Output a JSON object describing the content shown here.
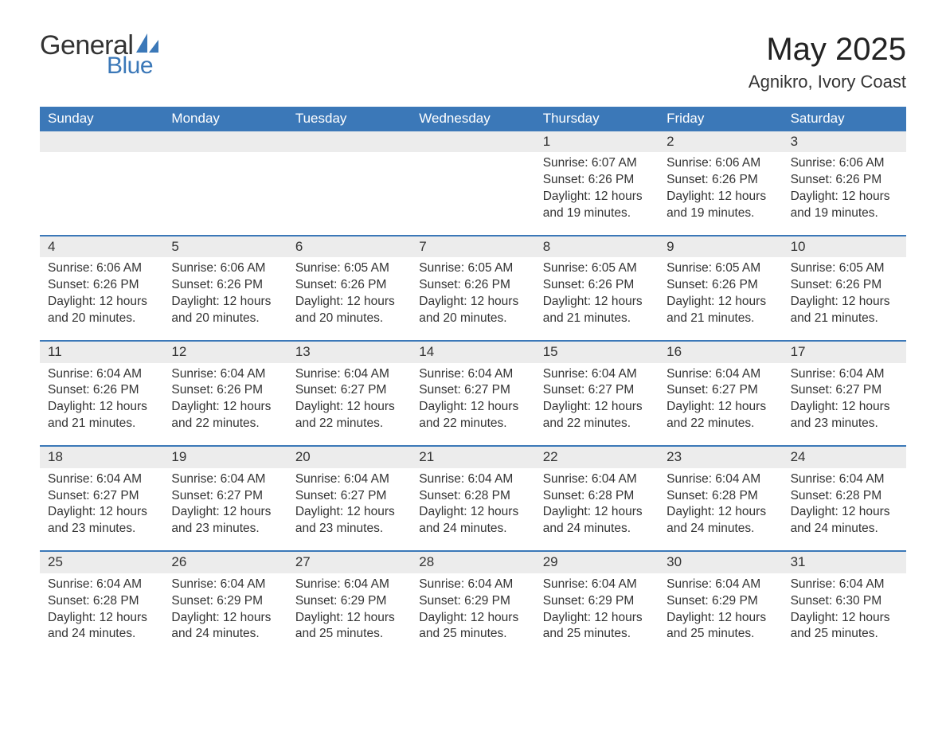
{
  "brand": {
    "word1": "General",
    "word2": "Blue",
    "sail_color": "#3b78b8",
    "text_color": "#333333",
    "blue_color": "#3b78b8"
  },
  "title": "May 2025",
  "location": "Agnikro, Ivory Coast",
  "colors": {
    "header_bg": "#3b78b8",
    "header_text": "#ffffff",
    "daynum_bg": "#ececec",
    "border": "#3b78b8",
    "body_text": "#333333",
    "page_bg": "#ffffff"
  },
  "typography": {
    "title_fontsize": 40,
    "location_fontsize": 22,
    "weekday_fontsize": 17,
    "daynum_fontsize": 17,
    "body_fontsize": 15.5,
    "font_family": "Segoe UI, Arial, Helvetica, sans-serif"
  },
  "weekdays": [
    "Sunday",
    "Monday",
    "Tuesday",
    "Wednesday",
    "Thursday",
    "Friday",
    "Saturday"
  ],
  "layout": {
    "columns": 7,
    "rows": 5,
    "first_day_column_index": 4,
    "days_in_month": 31
  },
  "weeks": [
    [
      null,
      null,
      null,
      null,
      {
        "n": "1",
        "sunrise": "Sunrise: 6:07 AM",
        "sunset": "Sunset: 6:26 PM",
        "dl1": "Daylight: 12 hours",
        "dl2": "and 19 minutes."
      },
      {
        "n": "2",
        "sunrise": "Sunrise: 6:06 AM",
        "sunset": "Sunset: 6:26 PM",
        "dl1": "Daylight: 12 hours",
        "dl2": "and 19 minutes."
      },
      {
        "n": "3",
        "sunrise": "Sunrise: 6:06 AM",
        "sunset": "Sunset: 6:26 PM",
        "dl1": "Daylight: 12 hours",
        "dl2": "and 19 minutes."
      }
    ],
    [
      {
        "n": "4",
        "sunrise": "Sunrise: 6:06 AM",
        "sunset": "Sunset: 6:26 PM",
        "dl1": "Daylight: 12 hours",
        "dl2": "and 20 minutes."
      },
      {
        "n": "5",
        "sunrise": "Sunrise: 6:06 AM",
        "sunset": "Sunset: 6:26 PM",
        "dl1": "Daylight: 12 hours",
        "dl2": "and 20 minutes."
      },
      {
        "n": "6",
        "sunrise": "Sunrise: 6:05 AM",
        "sunset": "Sunset: 6:26 PM",
        "dl1": "Daylight: 12 hours",
        "dl2": "and 20 minutes."
      },
      {
        "n": "7",
        "sunrise": "Sunrise: 6:05 AM",
        "sunset": "Sunset: 6:26 PM",
        "dl1": "Daylight: 12 hours",
        "dl2": "and 20 minutes."
      },
      {
        "n": "8",
        "sunrise": "Sunrise: 6:05 AM",
        "sunset": "Sunset: 6:26 PM",
        "dl1": "Daylight: 12 hours",
        "dl2": "and 21 minutes."
      },
      {
        "n": "9",
        "sunrise": "Sunrise: 6:05 AM",
        "sunset": "Sunset: 6:26 PM",
        "dl1": "Daylight: 12 hours",
        "dl2": "and 21 minutes."
      },
      {
        "n": "10",
        "sunrise": "Sunrise: 6:05 AM",
        "sunset": "Sunset: 6:26 PM",
        "dl1": "Daylight: 12 hours",
        "dl2": "and 21 minutes."
      }
    ],
    [
      {
        "n": "11",
        "sunrise": "Sunrise: 6:04 AM",
        "sunset": "Sunset: 6:26 PM",
        "dl1": "Daylight: 12 hours",
        "dl2": "and 21 minutes."
      },
      {
        "n": "12",
        "sunrise": "Sunrise: 6:04 AM",
        "sunset": "Sunset: 6:26 PM",
        "dl1": "Daylight: 12 hours",
        "dl2": "and 22 minutes."
      },
      {
        "n": "13",
        "sunrise": "Sunrise: 6:04 AM",
        "sunset": "Sunset: 6:27 PM",
        "dl1": "Daylight: 12 hours",
        "dl2": "and 22 minutes."
      },
      {
        "n": "14",
        "sunrise": "Sunrise: 6:04 AM",
        "sunset": "Sunset: 6:27 PM",
        "dl1": "Daylight: 12 hours",
        "dl2": "and 22 minutes."
      },
      {
        "n": "15",
        "sunrise": "Sunrise: 6:04 AM",
        "sunset": "Sunset: 6:27 PM",
        "dl1": "Daylight: 12 hours",
        "dl2": "and 22 minutes."
      },
      {
        "n": "16",
        "sunrise": "Sunrise: 6:04 AM",
        "sunset": "Sunset: 6:27 PM",
        "dl1": "Daylight: 12 hours",
        "dl2": "and 22 minutes."
      },
      {
        "n": "17",
        "sunrise": "Sunrise: 6:04 AM",
        "sunset": "Sunset: 6:27 PM",
        "dl1": "Daylight: 12 hours",
        "dl2": "and 23 minutes."
      }
    ],
    [
      {
        "n": "18",
        "sunrise": "Sunrise: 6:04 AM",
        "sunset": "Sunset: 6:27 PM",
        "dl1": "Daylight: 12 hours",
        "dl2": "and 23 minutes."
      },
      {
        "n": "19",
        "sunrise": "Sunrise: 6:04 AM",
        "sunset": "Sunset: 6:27 PM",
        "dl1": "Daylight: 12 hours",
        "dl2": "and 23 minutes."
      },
      {
        "n": "20",
        "sunrise": "Sunrise: 6:04 AM",
        "sunset": "Sunset: 6:27 PM",
        "dl1": "Daylight: 12 hours",
        "dl2": "and 23 minutes."
      },
      {
        "n": "21",
        "sunrise": "Sunrise: 6:04 AM",
        "sunset": "Sunset: 6:28 PM",
        "dl1": "Daylight: 12 hours",
        "dl2": "and 24 minutes."
      },
      {
        "n": "22",
        "sunrise": "Sunrise: 6:04 AM",
        "sunset": "Sunset: 6:28 PM",
        "dl1": "Daylight: 12 hours",
        "dl2": "and 24 minutes."
      },
      {
        "n": "23",
        "sunrise": "Sunrise: 6:04 AM",
        "sunset": "Sunset: 6:28 PM",
        "dl1": "Daylight: 12 hours",
        "dl2": "and 24 minutes."
      },
      {
        "n": "24",
        "sunrise": "Sunrise: 6:04 AM",
        "sunset": "Sunset: 6:28 PM",
        "dl1": "Daylight: 12 hours",
        "dl2": "and 24 minutes."
      }
    ],
    [
      {
        "n": "25",
        "sunrise": "Sunrise: 6:04 AM",
        "sunset": "Sunset: 6:28 PM",
        "dl1": "Daylight: 12 hours",
        "dl2": "and 24 minutes."
      },
      {
        "n": "26",
        "sunrise": "Sunrise: 6:04 AM",
        "sunset": "Sunset: 6:29 PM",
        "dl1": "Daylight: 12 hours",
        "dl2": "and 24 minutes."
      },
      {
        "n": "27",
        "sunrise": "Sunrise: 6:04 AM",
        "sunset": "Sunset: 6:29 PM",
        "dl1": "Daylight: 12 hours",
        "dl2": "and 25 minutes."
      },
      {
        "n": "28",
        "sunrise": "Sunrise: 6:04 AM",
        "sunset": "Sunset: 6:29 PM",
        "dl1": "Daylight: 12 hours",
        "dl2": "and 25 minutes."
      },
      {
        "n": "29",
        "sunrise": "Sunrise: 6:04 AM",
        "sunset": "Sunset: 6:29 PM",
        "dl1": "Daylight: 12 hours",
        "dl2": "and 25 minutes."
      },
      {
        "n": "30",
        "sunrise": "Sunrise: 6:04 AM",
        "sunset": "Sunset: 6:29 PM",
        "dl1": "Daylight: 12 hours",
        "dl2": "and 25 minutes."
      },
      {
        "n": "31",
        "sunrise": "Sunrise: 6:04 AM",
        "sunset": "Sunset: 6:30 PM",
        "dl1": "Daylight: 12 hours",
        "dl2": "and 25 minutes."
      }
    ]
  ]
}
